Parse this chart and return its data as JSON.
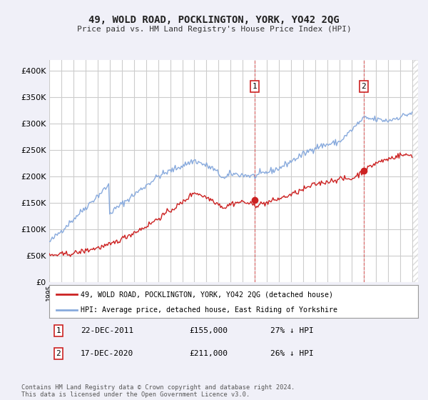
{
  "title": "49, WOLD ROAD, POCKLINGTON, YORK, YO42 2QG",
  "subtitle": "Price paid vs. HM Land Registry's House Price Index (HPI)",
  "ylim": [
    0,
    420000
  ],
  "yticks": [
    0,
    50000,
    100000,
    150000,
    200000,
    250000,
    300000,
    350000,
    400000
  ],
  "ytick_labels": [
    "£0",
    "£50K",
    "£100K",
    "£150K",
    "£200K",
    "£250K",
    "£300K",
    "£350K",
    "£400K"
  ],
  "bg_color": "#f0f0f8",
  "plot_bg_color": "#ffffff",
  "grid_color": "#cccccc",
  "legend_label_red": "49, WOLD ROAD, POCKLINGTON, YORK, YO42 2QG (detached house)",
  "legend_label_blue": "HPI: Average price, detached house, East Riding of Yorkshire",
  "transaction1_date": "22-DEC-2011",
  "transaction1_price": "£155,000",
  "transaction1_hpi": "27% ↓ HPI",
  "transaction2_date": "17-DEC-2020",
  "transaction2_price": "£211,000",
  "transaction2_hpi": "26% ↓ HPI",
  "footer": "Contains HM Land Registry data © Crown copyright and database right 2024.\nThis data is licensed under the Open Government Licence v3.0.",
  "hpi_color": "#88aadd",
  "price_color": "#cc2222",
  "transaction1_x": 2012.0,
  "transaction1_y": 155000,
  "transaction2_x": 2021.0,
  "transaction2_y": 211000,
  "vline1_x": 2012.0,
  "vline2_x": 2021.0,
  "xlim_min": 1995,
  "xlim_max": 2025.5,
  "hatch_start": 2025.0
}
